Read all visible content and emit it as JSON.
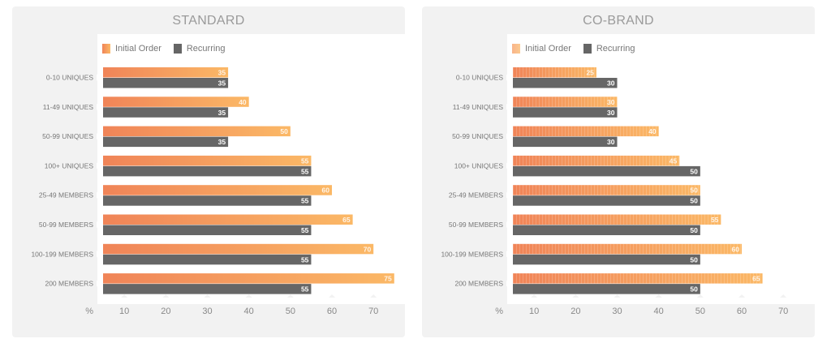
{
  "colors": {
    "initial_start": "#f08458",
    "initial_end": "#fbb866",
    "recurring": "#666666",
    "panel_bg": "#f2f2f2",
    "plot_bg": "#ffffff",
    "label": "#777777"
  },
  "chart_data": [
    {
      "type": "bar",
      "orientation": "horizontal",
      "title": "STANDARD",
      "categories": [
        "0-10 UNIQUES",
        "11-49 UNIQUES",
        "50-99 UNIQUES",
        "100+ UNIQUES",
        "25-49 MEMBERS",
        "50-99 MEMBERS",
        "100-199 MEMBERS",
        "200 MEMBERS"
      ],
      "series": [
        {
          "name": "Initial Order",
          "values": [
            35,
            40,
            50,
            55,
            60,
            65,
            70,
            75
          ]
        },
        {
          "name": "Recurring",
          "values": [
            35,
            35,
            35,
            55,
            55,
            55,
            55,
            55
          ]
        }
      ],
      "xlabel": "%",
      "xticks": [
        10,
        20,
        30,
        40,
        50,
        60,
        70
      ],
      "xlim": [
        0,
        75
      ],
      "legend": "top-left",
      "grid": false
    },
    {
      "type": "bar",
      "orientation": "horizontal",
      "title": "CO-BRAND",
      "categories": [
        "0-10 UNIQUES",
        "11-49 UNIQUES",
        "50-99 UNIQUES",
        "100+ UNIQUES",
        "25-49 MEMBERS",
        "50-99 MEMBERS",
        "100-199 MEMBERS",
        "200 MEMBERS"
      ],
      "series": [
        {
          "name": "Initial Order",
          "values": [
            25,
            30,
            40,
            45,
            50,
            55,
            60,
            65
          ]
        },
        {
          "name": "Recurring",
          "values": [
            30,
            30,
            30,
            50,
            50,
            50,
            50,
            50
          ]
        }
      ],
      "xlabel": "%",
      "xticks": [
        10,
        20,
        30,
        40,
        50,
        60,
        70
      ],
      "xlim": [
        0,
        75
      ],
      "legend": "top-left",
      "grid": false
    }
  ]
}
